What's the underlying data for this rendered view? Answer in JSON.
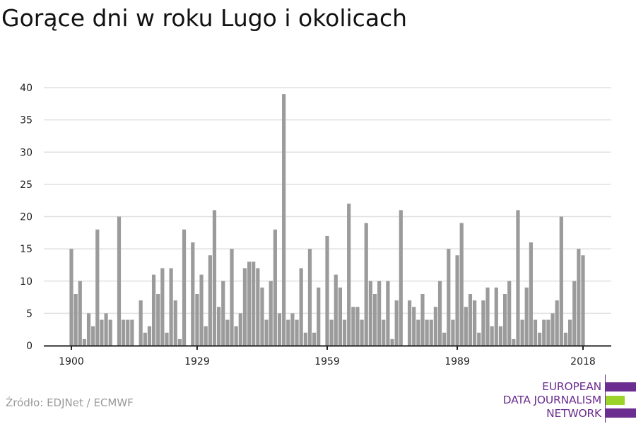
{
  "title": "Gorące dni w roku Lugo i okolicach",
  "source": "Źródło: EDJNet / ECMWF",
  "logo": {
    "lines": [
      "EUROPEAN",
      "DATA JOURNALISM",
      "NETWORK"
    ],
    "colors": {
      "purple": "#6b2d8f",
      "green": "#9bd32b"
    }
  },
  "chart_data": {
    "type": "bar",
    "title": "Gorące dni w roku Lugo i okolicach",
    "xlabel": "",
    "ylabel": "",
    "ylim": [
      0,
      40
    ],
    "yticks": [
      0,
      5,
      10,
      15,
      20,
      25,
      30,
      35,
      40
    ],
    "xticks": [
      1900,
      1929,
      1959,
      1989,
      2018
    ],
    "grid": true,
    "bar_color": "#9b9b9b",
    "x_start": 1900,
    "values": [
      15,
      8,
      10,
      1,
      5,
      3,
      18,
      4,
      5,
      4,
      0,
      20,
      4,
      4,
      4,
      0,
      7,
      2,
      3,
      11,
      8,
      12,
      2,
      12,
      7,
      1,
      18,
      0,
      16,
      8,
      11,
      3,
      14,
      21,
      6,
      10,
      4,
      15,
      3,
      5,
      12,
      13,
      13,
      12,
      9,
      4,
      10,
      18,
      5,
      39,
      4,
      5,
      4,
      12,
      2,
      15,
      2,
      9,
      0,
      17,
      4,
      11,
      9,
      4,
      22,
      6,
      6,
      4,
      19,
      10,
      8,
      10,
      4,
      10,
      1,
      7,
      21,
      0,
      7,
      6,
      4,
      8,
      4,
      4,
      6,
      10,
      2,
      15,
      4,
      14,
      19,
      6,
      8,
      7,
      2,
      7,
      9,
      3,
      9,
      3,
      8,
      10,
      1,
      21,
      4,
      9,
      16,
      4,
      2,
      4,
      4,
      5,
      7,
      20,
      2,
      4,
      10,
      15,
      14
    ]
  }
}
